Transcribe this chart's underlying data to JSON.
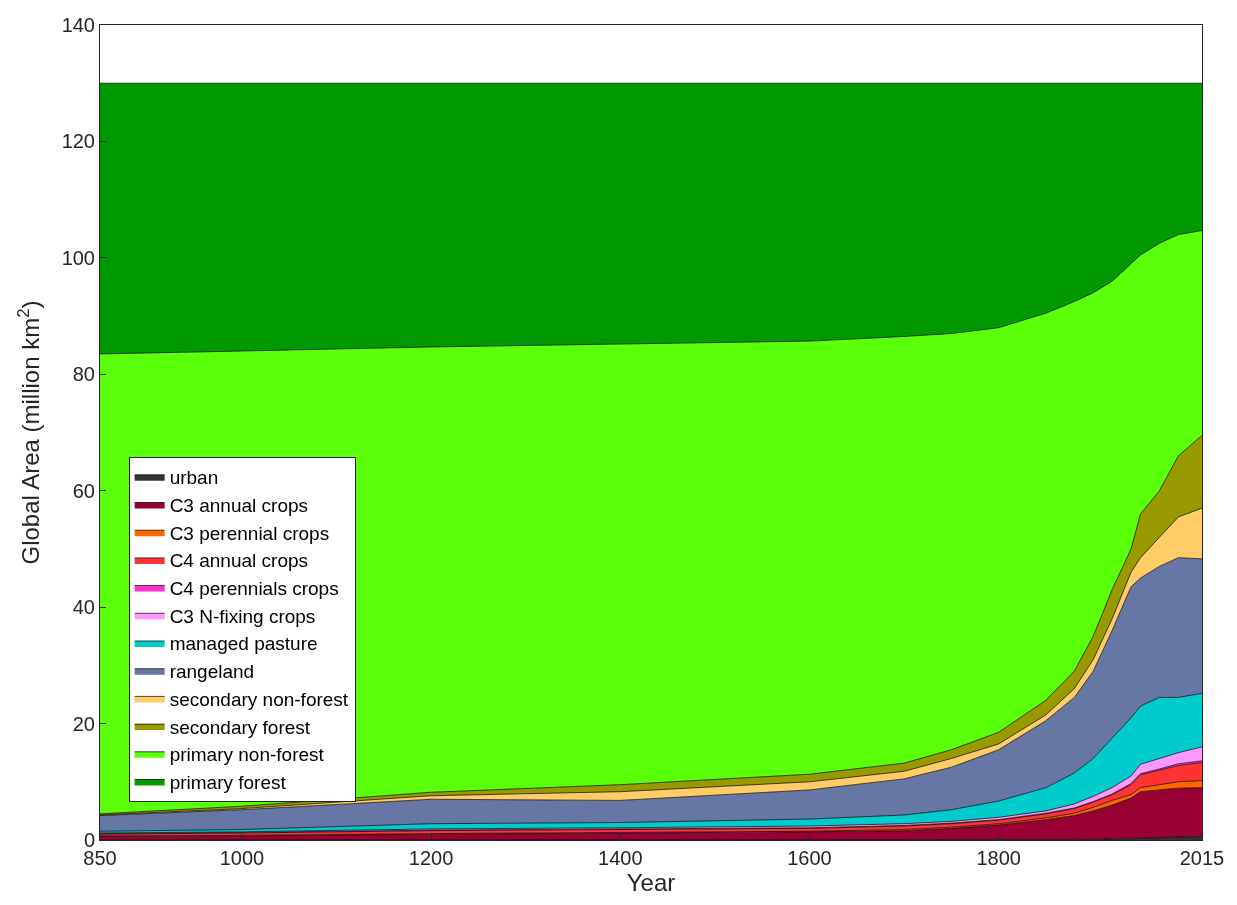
{
  "chart_data": {
    "type": "area",
    "stacked": true,
    "xlabel": "Year",
    "ylabel": "Global Area (million km$^{2}$)",
    "x": [
      850,
      1000,
      1200,
      1400,
      1600,
      1700,
      1750,
      1800,
      1850,
      1880,
      1900,
      1920,
      1940,
      1950,
      1970,
      1990,
      2015
    ],
    "xlim": [
      850,
      2015
    ],
    "xticks": [
      850,
      1000,
      1200,
      1400,
      1600,
      1800,
      2015
    ],
    "ylim": [
      0,
      140
    ],
    "yticks": [
      0,
      20,
      40,
      60,
      80,
      100,
      120,
      140
    ],
    "legend": "left",
    "series": [
      {
        "name": "urban",
        "color": "#333333",
        "values": [
          0,
          0,
          0,
          0,
          0,
          0,
          0.1,
          0.1,
          0.1,
          0.1,
          0.1,
          0.2,
          0.2,
          0.3,
          0.4,
          0.5,
          0.6
        ]
      },
      {
        "name": "C3 annual crops",
        "color": "#990033",
        "values": [
          0.6,
          0.7,
          1.0,
          1.2,
          1.4,
          1.6,
          1.9,
          2.5,
          3.4,
          4.1,
          4.9,
          5.8,
          7.0,
          8.0,
          8.2,
          8.4,
          8.4
        ]
      },
      {
        "name": "C3 perennial crops",
        "color": "#ff6600",
        "values": [
          0.1,
          0.1,
          0.1,
          0.1,
          0.1,
          0.2,
          0.2,
          0.2,
          0.3,
          0.4,
          0.6,
          0.8,
          0.6,
          0.7,
          0.9,
          1.1,
          1.2
        ]
      },
      {
        "name": "C4 annual crops",
        "color": "#ff3333",
        "values": [
          0.3,
          0.4,
          0.5,
          0.5,
          0.5,
          0.6,
          0.6,
          0.6,
          0.7,
          0.8,
          0.9,
          1.0,
          1.7,
          2.2,
          2.5,
          2.8,
          3.1
        ]
      },
      {
        "name": "C4 perennials crops",
        "color": "#ff33cc",
        "values": [
          0.1,
          0.1,
          0.1,
          0.1,
          0.1,
          0.1,
          0.1,
          0.1,
          0.1,
          0.1,
          0.1,
          0.1,
          0.2,
          0.2,
          0.2,
          0.3,
          0.3
        ]
      },
      {
        "name": "C3 N-fixing crops",
        "color": "#ff99ff",
        "values": [
          0.1,
          0.1,
          0.2,
          0.2,
          0.3,
          0.3,
          0.3,
          0.4,
          0.4,
          0.7,
          0.9,
          1.1,
          1.3,
          1.6,
          1.8,
          1.9,
          2.4
        ]
      },
      {
        "name": "managed pasture",
        "color": "#00cccc",
        "values": [
          0.3,
          0.4,
          0.9,
          0.9,
          1.2,
          1.5,
          2.0,
          2.8,
          4.0,
          5.3,
          6.5,
          8.5,
          10,
          10,
          10.5,
          9.5,
          9.2
        ]
      },
      {
        "name": "rangeland",
        "color": "#6677a6",
        "values": [
          2.7,
          3.4,
          4.2,
          3.8,
          5.0,
          6.2,
          7.3,
          8.8,
          11.5,
          13,
          15,
          18.5,
          22.5,
          22,
          22.5,
          24,
          23.1
        ]
      },
      {
        "name": "secondary non-forest",
        "color": "#ffcc66",
        "values": [
          0.1,
          0.2,
          0.6,
          1.5,
          1.4,
          1.3,
          1.5,
          1.0,
          1.0,
          1.5,
          2,
          2,
          2.5,
          3.5,
          5,
          7,
          8.7
        ]
      },
      {
        "name": "secondary forest",
        "color": "#999900",
        "values": [
          0.2,
          0.4,
          0.6,
          1.2,
          1.3,
          1.4,
          1.5,
          2.0,
          2.5,
          3,
          4,
          5,
          4,
          7.5,
          8,
          10.5,
          12.5
        ]
      },
      {
        "name": "primary non-forest",
        "color": "#5aff0a",
        "values": [
          79.0,
          78.2,
          76.5,
          75.7,
          74.4,
          73.3,
          71.5,
          69.5,
          66.5,
          63.5,
          59,
          53,
          49,
          44.5,
          42.5,
          38,
          35.2
        ]
      },
      {
        "name": "primary forest",
        "color": "#009900",
        "values": [
          46.5,
          46,
          45.3,
          44.8,
          44.3,
          43.5,
          43,
          42,
          39.5,
          37.5,
          36,
          34,
          31,
          29.5,
          27.5,
          26,
          25.3
        ]
      }
    ]
  }
}
